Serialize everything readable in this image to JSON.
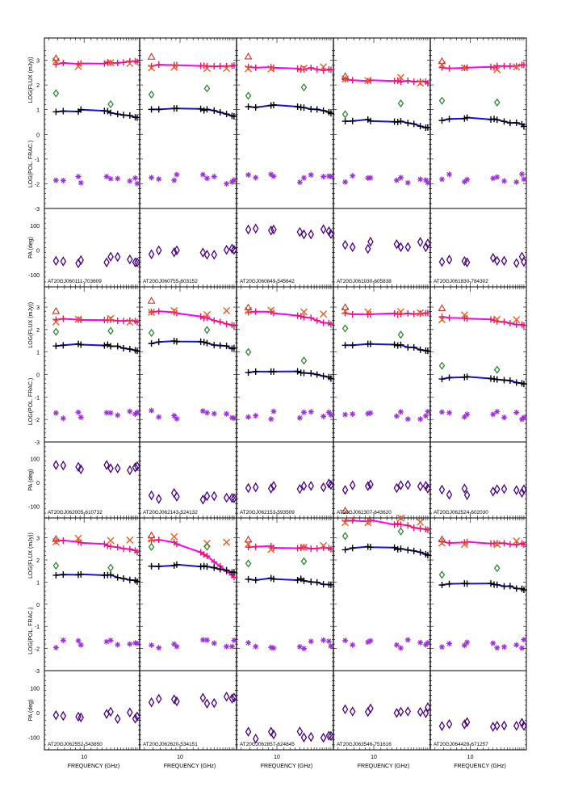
{
  "chart_data": {
    "type": "scatter",
    "title": "",
    "xlabel": "FREQUENCY (GHz)",
    "x_tick_label": "10",
    "xlim_log10": [
      0.55,
      1.63
    ],
    "flux_ylabel": "LOG(FLUX (mJy))",
    "pol_ylabel": "LOG(POL. FRAC.)",
    "pa_ylabel": "PA (deg)",
    "flux_yticks": [
      "3",
      "2",
      "1",
      "0"
    ],
    "pol_yticks": [
      "-1",
      "-2",
      "-3"
    ],
    "pa_yticks": [
      "100",
      "0",
      "-100"
    ],
    "ylim_top": [
      -3,
      3.9
    ],
    "ylim_pa": [
      -150,
      170
    ],
    "colors": {
      "total_fit": "#ff00ff",
      "polar_fit": "#1414d2",
      "at20g": "#e8176b",
      "cross": "#f05a1e",
      "triangle": "#c0392b",
      "diamond": "#2e8b2e",
      "plus": "#000000",
      "star": "#9b30d9",
      "pa": "#4b0082",
      "down_triangle": "#9b30d9"
    },
    "panels": [
      {
        "name": "AT20GJ060111-703609"
      },
      {
        "name": "AT20GJ060755-603152"
      },
      {
        "name": "AT20GJ060849-545642"
      },
      {
        "name": "AT20GJ061030-605838"
      },
      {
        "name": "AT20GJ061830-784302"
      },
      {
        "name": "AT20GJ062005-610732"
      },
      {
        "name": "AT20GJ062143-524132"
      },
      {
        "name": "AT20GJ062153-593509"
      },
      {
        "name": "AT20GJ062307-643620"
      },
      {
        "name": "AT20GJ062524-602030"
      },
      {
        "name": "AT20GJ062552-543850"
      },
      {
        "name": "AT20GJ062620-534151"
      },
      {
        "name": "AT20GJ062857-624845"
      },
      {
        "name": "AT20GJ063546-751616"
      },
      {
        "name": "AT20GJ064428-671257"
      }
    ]
  }
}
